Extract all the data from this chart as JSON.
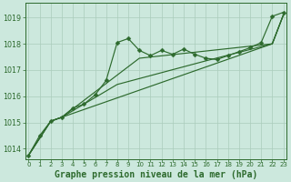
{
  "bg_color": "#cce8dd",
  "grid_color": "#aaccbb",
  "line_color": "#2d6a2d",
  "xlabel": "Graphe pression niveau de la mer (hPa)",
  "xlabel_fontsize": 7.0,
  "xlim": [
    -0.3,
    23.3
  ],
  "ylim": [
    1013.6,
    1019.55
  ],
  "yticks": [
    1014,
    1015,
    1016,
    1017,
    1018,
    1019
  ],
  "xticks": [
    0,
    1,
    2,
    3,
    4,
    5,
    6,
    7,
    8,
    9,
    10,
    11,
    12,
    13,
    14,
    15,
    16,
    17,
    18,
    19,
    20,
    21,
    22,
    23
  ],
  "jagged_x": [
    0,
    1,
    2,
    3,
    4,
    5,
    6,
    7,
    8,
    9,
    10,
    11,
    12,
    13,
    14,
    15,
    16,
    17,
    18,
    19,
    20,
    21,
    22,
    23
  ],
  "jagged_y": [
    1013.75,
    1014.5,
    1015.05,
    1015.2,
    1015.55,
    1015.7,
    1016.05,
    1016.6,
    1018.05,
    1018.2,
    1017.75,
    1017.55,
    1017.75,
    1017.6,
    1017.8,
    1017.6,
    1017.45,
    1017.4,
    1017.55,
    1017.7,
    1017.85,
    1018.05,
    1019.05,
    1019.2
  ],
  "trend1_x": [
    0,
    2,
    3,
    22,
    23
  ],
  "trend1_y": [
    1013.75,
    1015.05,
    1015.2,
    1018.0,
    1019.1
  ],
  "trend2_x": [
    0,
    2,
    3,
    10,
    22,
    23
  ],
  "trend2_y": [
    1013.75,
    1015.05,
    1015.2,
    1017.45,
    1018.0,
    1019.1
  ],
  "trend3_x": [
    0,
    2,
    3,
    8,
    16,
    22,
    23
  ],
  "trend3_y": [
    1013.75,
    1015.05,
    1015.2,
    1016.45,
    1017.35,
    1018.0,
    1019.1
  ]
}
